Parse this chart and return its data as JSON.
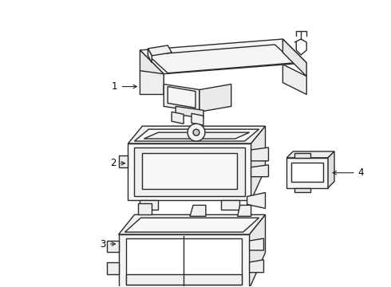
{
  "background_color": "#ffffff",
  "line_color": "#2a2a2a",
  "line_width": 1.0,
  "label_color": "#000000",
  "label_fontsize": 8.5,
  "figsize": [
    4.9,
    3.6
  ],
  "dpi": 100
}
